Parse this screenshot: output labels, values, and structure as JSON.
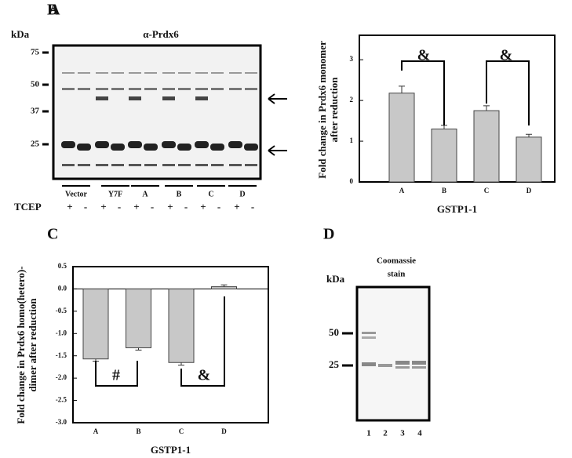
{
  "chart_data": [
    {
      "type": "bar",
      "panel_label": "B",
      "ylabel": [
        "Fold change in Prdx6 monomer",
        "after reduction"
      ],
      "xlabel": "GSTP1-1",
      "categories": [
        "A",
        "B",
        "C",
        "D"
      ],
      "values": [
        2.18,
        1.3,
        1.75,
        1.1
      ],
      "errors": [
        0.17,
        0.09,
        0.12,
        0.07
      ],
      "color": "#c8c8c8",
      "ylim": [
        0,
        3.6
      ],
      "yticks": [
        0,
        1,
        2,
        3
      ],
      "annotations": [
        "&",
        "&"
      ]
    },
    {
      "type": "bar",
      "panel_label": "C",
      "ylabel": [
        "Fold change in Prdx6 homo(hetero)-",
        "dimer after reduction"
      ],
      "xlabel": "GSTP1-1",
      "categories": [
        "A",
        "B",
        "C",
        "D"
      ],
      "values": [
        -1.57,
        -1.32,
        -1.65,
        0.05
      ],
      "errors": [
        0.05,
        0.05,
        0.06,
        0.04
      ],
      "color": "#c8c8c8",
      "ylim": [
        -3.0,
        0.5
      ],
      "yticks": [
        {
          "value": 0.5,
          "label": "0.5"
        },
        {
          "value": 0,
          "label": "0.0"
        },
        {
          "value": -0.5,
          "label": "-0.5"
        },
        {
          "value": -1,
          "label": "-1.0"
        },
        {
          "value": -1.5,
          "label": "-1.5"
        },
        {
          "value": -2,
          "label": "-2.0"
        },
        {
          "value": -2.5,
          "label": "-2.5"
        },
        {
          "value": -3,
          "label": "-3.0"
        }
      ],
      "annotations": [
        "#",
        "&"
      ]
    }
  ],
  "panel_a": {
    "label": "A",
    "unit": "kDa",
    "antibody": "α-Prdx6",
    "markers": [
      "75",
      "50",
      "37",
      "25"
    ],
    "groups": [
      "Vector",
      "Y7F",
      "A",
      "B",
      "C",
      "D"
    ],
    "treatment": "TCEP",
    "signs": [
      "+",
      "-",
      "+",
      "-",
      "+",
      "-",
      "+",
      "-",
      "+",
      "-",
      "+",
      "-"
    ]
  },
  "panel_d": {
    "label": "D",
    "unit": "kDa",
    "stain": [
      "Coomassie",
      "stain"
    ],
    "markers": [
      "50",
      "25"
    ],
    "lanes": [
      "1",
      "2",
      "3",
      "4"
    ]
  }
}
